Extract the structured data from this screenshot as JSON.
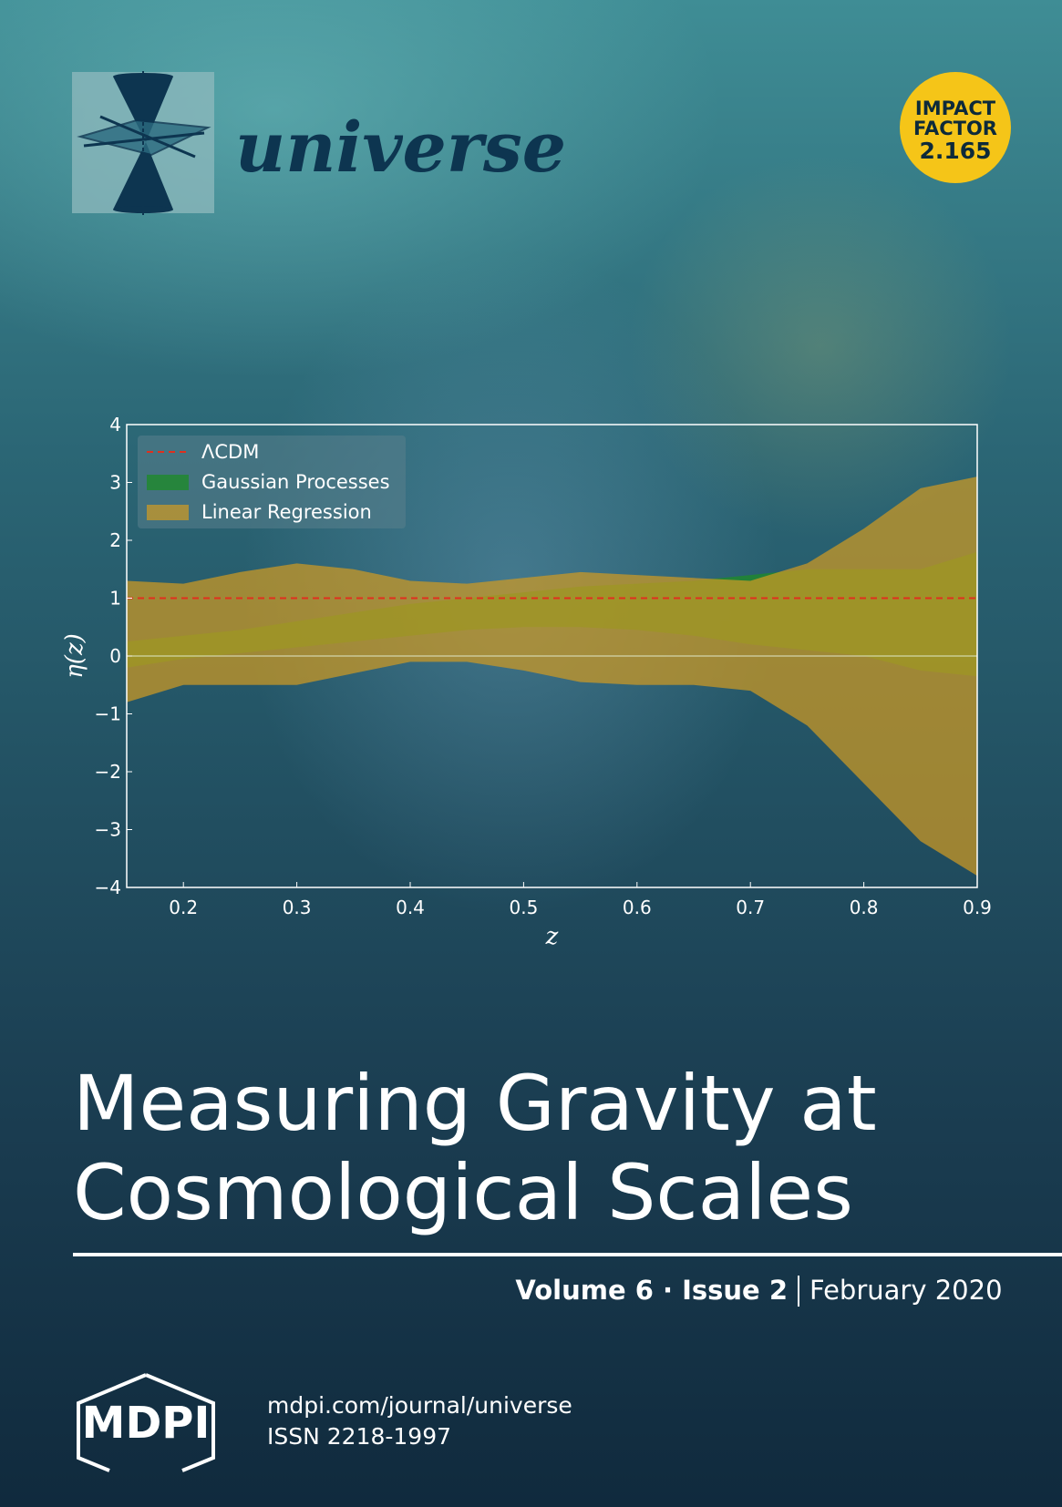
{
  "journal": {
    "name": "universe"
  },
  "impact_factor": {
    "line1": "IMPACT",
    "line2": "FACTOR",
    "value": "2.165"
  },
  "chart_data": {
    "type": "band",
    "x_label": "z",
    "y_label": "η(z)",
    "x": [
      0.15,
      0.2,
      0.25,
      0.3,
      0.35,
      0.4,
      0.45,
      0.5,
      0.55,
      0.6,
      0.65,
      0.7,
      0.75,
      0.8,
      0.85,
      0.9
    ],
    "series": [
      {
        "name": "ΛCDM",
        "color": "#e0301e",
        "style": "dashed",
        "value": 1
      },
      {
        "name": "Gaussian Processes",
        "color": "#1f8a2a",
        "alpha": 0.8,
        "upper": [
          0.25,
          0.35,
          0.45,
          0.6,
          0.75,
          0.9,
          1.0,
          1.1,
          1.2,
          1.25,
          1.3,
          1.4,
          1.5,
          1.5,
          1.5,
          1.8
        ],
        "lower": [
          -0.2,
          -0.05,
          0.05,
          0.15,
          0.25,
          0.35,
          0.45,
          0.5,
          0.5,
          0.45,
          0.35,
          0.2,
          0.1,
          0,
          -0.25,
          -0.35
        ]
      },
      {
        "name": "Linear Regression",
        "color": "#cf9a22",
        "alpha": 0.72,
        "upper": [
          1.3,
          1.25,
          1.45,
          1.6,
          1.5,
          1.3,
          1.25,
          1.35,
          1.45,
          1.4,
          1.35,
          1.3,
          1.6,
          2.2,
          2.9,
          3.1
        ],
        "lower": [
          -0.8,
          -0.5,
          -0.5,
          -0.5,
          -0.3,
          -0.1,
          -0.1,
          -0.25,
          -0.45,
          -0.5,
          -0.5,
          -0.6,
          -1.2,
          -2.2,
          -3.2,
          -3.8
        ]
      }
    ],
    "axhline": 0,
    "xlim": [
      0.15,
      0.9
    ],
    "ylim": [
      -4,
      4
    ],
    "xticks": [
      0.2,
      0.3,
      0.4,
      0.5,
      0.6,
      0.7,
      0.8,
      0.9
    ],
    "yticks": [
      {
        "value": -4,
        "label": "−4"
      },
      {
        "value": -3,
        "label": "−3"
      },
      {
        "value": -2,
        "label": "−2"
      },
      {
        "value": -1,
        "label": "−1"
      },
      0,
      1,
      2,
      3,
      4
    ],
    "legend": "upper left"
  },
  "title": {
    "line1": "Measuring Gravity at",
    "line2": "Cosmological Scales"
  },
  "issue": {
    "volume": "Volume 6 · Issue 2",
    "date": "February 2020"
  },
  "footer": {
    "publisher": "MDPI",
    "url": "mdpi.com/journal/universe",
    "issn": "ISSN 2218-1997"
  }
}
